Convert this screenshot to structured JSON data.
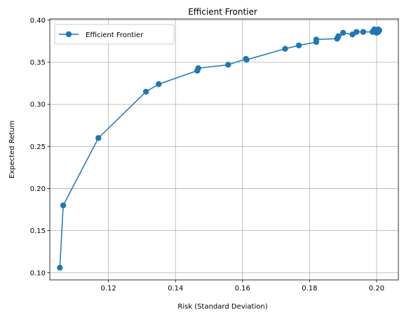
{
  "chart_data": {
    "type": "line",
    "title": "Efficient Frontier",
    "xlabel": "Risk (Standard Deviation)",
    "ylabel": "Expected Return",
    "xlim": [
      0.1025,
      0.2065
    ],
    "ylim": [
      0.0915,
      0.4015
    ],
    "xticks": [
      0.12,
      0.14,
      0.16,
      0.18,
      0.2
    ],
    "xtick_labels": [
      "0.12",
      "0.14",
      "0.16",
      "0.18",
      "0.20"
    ],
    "yticks": [
      0.1,
      0.15,
      0.2,
      0.25,
      0.3,
      0.35,
      0.4
    ],
    "ytick_labels": [
      "0.10",
      "0.15",
      "0.20",
      "0.25",
      "0.30",
      "0.35",
      "0.40"
    ],
    "grid": true,
    "legend_position": "top-left",
    "color": "#1f77b4",
    "series": [
      {
        "name": "Efficient Frontier",
        "points": [
          [
            0.1055,
            0.106
          ],
          [
            0.1065,
            0.18
          ],
          [
            0.117,
            0.26
          ],
          [
            0.1312,
            0.315
          ],
          [
            0.135,
            0.324
          ],
          [
            0.1465,
            0.34
          ],
          [
            0.1468,
            0.343
          ],
          [
            0.1557,
            0.347
          ],
          [
            0.161,
            0.354
          ],
          [
            0.1612,
            0.353
          ],
          [
            0.1727,
            0.366
          ],
          [
            0.1768,
            0.37
          ],
          [
            0.182,
            0.374
          ],
          [
            0.182,
            0.377
          ],
          [
            0.1882,
            0.378
          ],
          [
            0.1884,
            0.379
          ],
          [
            0.1886,
            0.381
          ],
          [
            0.19,
            0.385
          ],
          [
            0.1928,
            0.383
          ],
          [
            0.194,
            0.386
          ],
          [
            0.196,
            0.386
          ],
          [
            0.1988,
            0.386
          ],
          [
            0.1993,
            0.389
          ],
          [
            0.2,
            0.385
          ],
          [
            0.2005,
            0.386
          ],
          [
            0.2008,
            0.388
          ],
          [
            0.2005,
            0.389
          ]
        ]
      }
    ]
  }
}
